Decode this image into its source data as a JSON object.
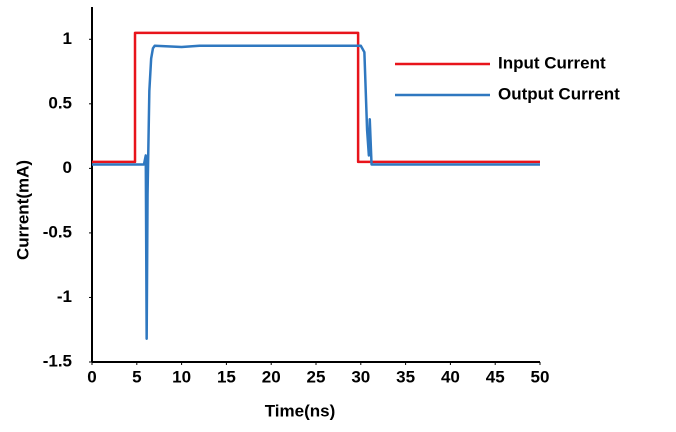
{
  "chart_data": {
    "type": "line",
    "xlabel": "Time(ns)",
    "ylabel": "Current(mA)",
    "xlim": [
      0,
      50
    ],
    "ylim": [
      -1.5,
      1.25
    ],
    "xticks": [
      0,
      5,
      10,
      15,
      20,
      25,
      30,
      35,
      40,
      45,
      50
    ],
    "yticks": [
      1,
      0.5,
      0,
      -0.5,
      -1,
      -1.5
    ],
    "grid": false,
    "legend": "upper right",
    "series": [
      {
        "name": "Input Current",
        "color": "#e8141b",
        "x": [
          0,
          4.8,
          4.8,
          29.7,
          29.7,
          50
        ],
        "values": [
          0.05,
          0.05,
          1.05,
          1.05,
          0.05,
          0.05
        ]
      },
      {
        "name": "Output Current",
        "color": "#2f78c0",
        "x": [
          0,
          5.8,
          6.0,
          6.1,
          6.2,
          6.4,
          6.6,
          6.8,
          7,
          10,
          12,
          30,
          30.4,
          30.7,
          30.9,
          31,
          31.2,
          32,
          50
        ],
        "values": [
          0.03,
          0.03,
          0.1,
          -1.32,
          -0.2,
          0.6,
          0.85,
          0.93,
          0.95,
          0.94,
          0.95,
          0.95,
          0.9,
          0.3,
          0.1,
          0.38,
          0.03,
          0.03,
          0.03
        ]
      }
    ]
  }
}
